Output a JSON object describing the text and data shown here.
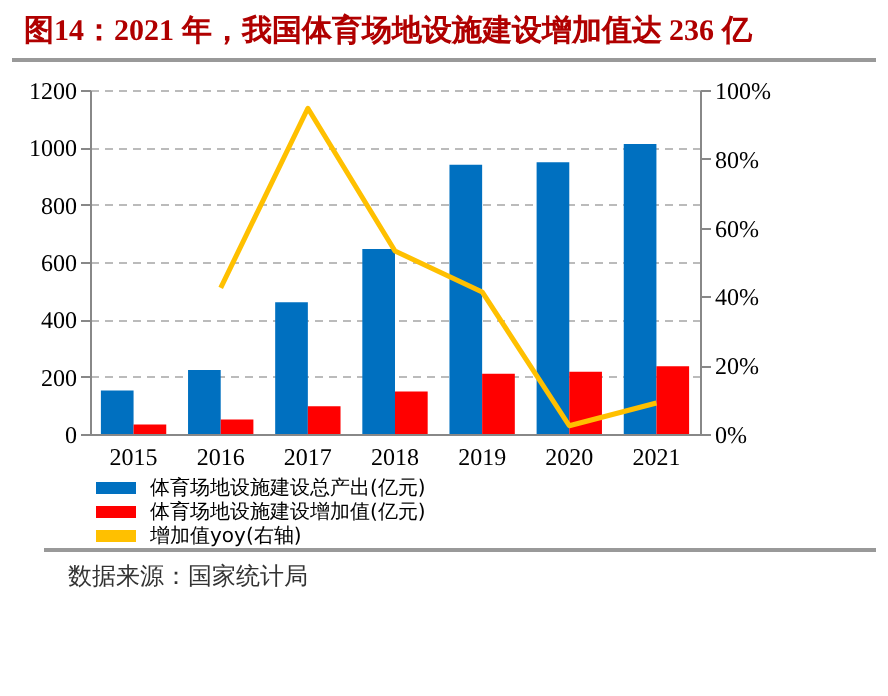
{
  "chart_data": {
    "type": "bar",
    "title": "图14：2021 年，我国体育场地设施建设增加值达 236 亿",
    "categories": [
      "2015",
      "2016",
      "2017",
      "2018",
      "2019",
      "2020",
      "2021"
    ],
    "series": [
      {
        "name": "体育场地设施建设总产出(亿元)",
        "color": "#0070c0",
        "values": [
          152,
          223,
          460,
          645,
          939,
          948,
          1012
        ]
      },
      {
        "name": "体育场地设施建设增加值(亿元)",
        "color": "#ff0000",
        "values": [
          33,
          51,
          97,
          148,
          210,
          217,
          236
        ]
      },
      {
        "name": "增加值yoy(右轴)",
        "color": "#ffc000",
        "type": "line",
        "axis": "y2",
        "values": [
          null,
          42.5,
          94.7,
          53.2,
          41.3,
          2.4,
          9.0
        ]
      }
    ],
    "ylim": [
      0,
      1200
    ],
    "yticks": [
      0,
      200,
      400,
      600,
      800,
      1000,
      1200
    ],
    "y2lim": [
      0,
      100
    ],
    "y2ticks": [
      {
        "value": 0,
        "label": "0%"
      },
      {
        "value": 20,
        "label": "20%"
      },
      {
        "value": 40,
        "label": "40%"
      },
      {
        "value": 60,
        "label": "60%"
      },
      {
        "value": 80,
        "label": "80%"
      },
      {
        "value": 100,
        "label": "100%"
      }
    ],
    "grid": "y",
    "legend": "bottom",
    "annotations": [
      "数据来源：国家统计局"
    ]
  }
}
